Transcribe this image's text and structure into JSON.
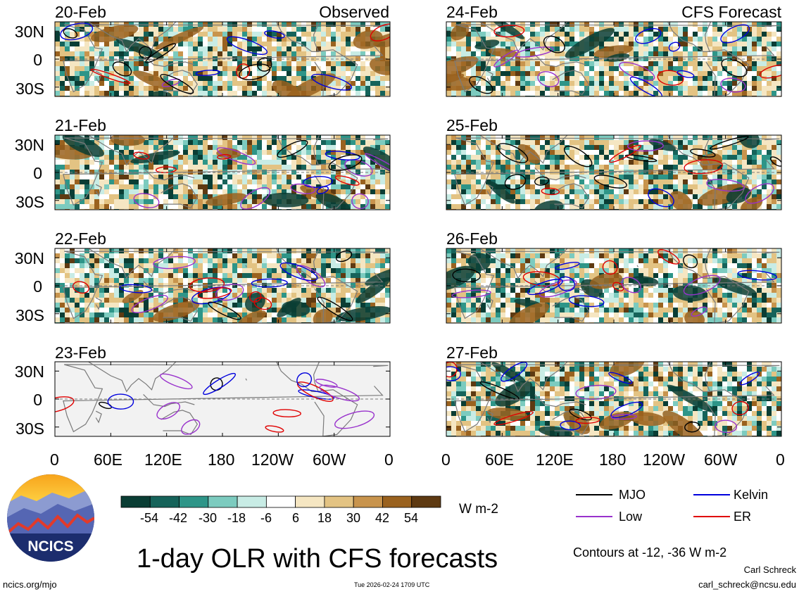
{
  "chart_data": {
    "type": "heatmap",
    "title": "1-day OLR with CFS forecasts",
    "variable": "OLR anomaly",
    "units": "W m-2",
    "panels": [
      {
        "date": "20-Feb",
        "source": "Observed",
        "tag": "Observed"
      },
      {
        "date": "21-Feb",
        "source": "Observed",
        "tag": ""
      },
      {
        "date": "22-Feb",
        "source": "Observed",
        "tag": ""
      },
      {
        "date": "23-Feb",
        "source": "Observed",
        "tag": "",
        "no_data": true
      },
      {
        "date": "24-Feb",
        "source": "CFS Forecast",
        "tag": "CFS Forecast"
      },
      {
        "date": "25-Feb",
        "source": "CFS Forecast",
        "tag": ""
      },
      {
        "date": "26-Feb",
        "source": "CFS Forecast",
        "tag": ""
      },
      {
        "date": "27-Feb",
        "source": "CFS Forecast",
        "tag": ""
      }
    ],
    "x_axis": {
      "ticks": [
        "0",
        "60E",
        "120E",
        "180",
        "120W",
        "60W",
        "0"
      ],
      "lon_range": [
        0,
        360
      ]
    },
    "y_axis": {
      "ticks": [
        "30N",
        "0",
        "30S"
      ],
      "lat_range": [
        -40,
        40
      ]
    },
    "colorbar": {
      "ticks": [
        "-54",
        "-42",
        "-30",
        "-18",
        "-6",
        "6",
        "18",
        "30",
        "42",
        "54"
      ],
      "levels": [
        -54,
        -42,
        -30,
        -18,
        -6,
        6,
        18,
        30,
        42,
        54
      ],
      "colors": [
        "#0a3d34",
        "#16635a",
        "#2e9588",
        "#7ccbbf",
        "#c8ece5",
        "#ffffff",
        "#f5e6c2",
        "#e3c383",
        "#c8944d",
        "#9a621f",
        "#5e3a12"
      ]
    },
    "contours": {
      "note": "Contours at -12, -36 W m-2",
      "series": [
        {
          "name": "MJO",
          "color": "#000000"
        },
        {
          "name": "Kelvin",
          "color": "#0000dd"
        },
        {
          "name": "Low",
          "color": "#9932cc"
        },
        {
          "name": "ER",
          "color": "#e00000"
        }
      ]
    }
  },
  "footer": {
    "logo_text": "NCICS",
    "url": "ncics.org/mjo",
    "timestamp": "Tue 2026-02-24 1709 UTC",
    "author": "Carl Schreck",
    "email": "carl_schreck@ncsu.edu"
  }
}
